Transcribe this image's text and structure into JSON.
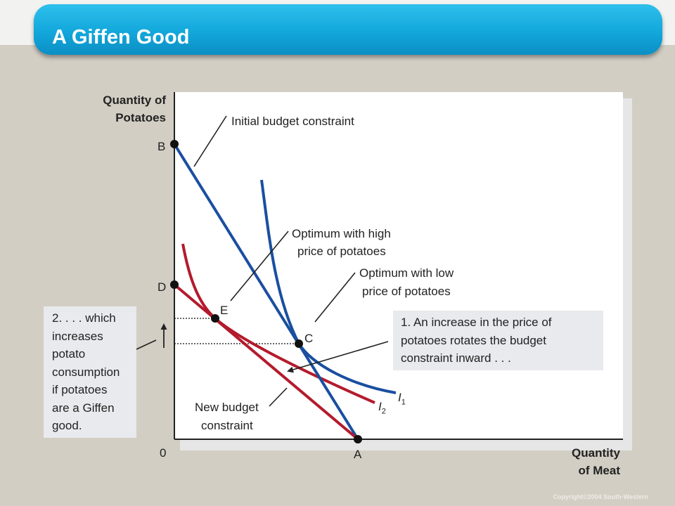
{
  "slide": {
    "title": "A Giffen Good",
    "copyright": "Copyright©2004  South-Western"
  },
  "diagram": {
    "axes": {
      "y_title_line1": "Quantity of",
      "y_title_line2": "Potatoes",
      "x_title_line1": "Quantity",
      "x_title_line2": "of Meat",
      "origin": "0"
    },
    "points": {
      "b": "B",
      "d": "D",
      "e": "E",
      "c": "C",
      "a": "A"
    },
    "curves": {
      "i1": "I",
      "i1_sub": "1",
      "i2": "I",
      "i2_sub": "2"
    },
    "labels": {
      "initial_budget": "Initial budget constraint",
      "optimum_high_line1": "Optimum with high",
      "optimum_high_line2": "price of potatoes",
      "optimum_low_line1": "Optimum with low",
      "optimum_low_line2": "price of potatoes",
      "new_budget_line1": "New budget",
      "new_budget_line2": "constraint"
    },
    "callouts": {
      "increase_price": [
        "1. An increase in the price of",
        "potatoes rotates the budget",
        "constraint inward . . ."
      ],
      "giffen": [
        "2. . . . which",
        "increases",
        "potato",
        "consumption",
        "if potatoes",
        "are a Giffen",
        "good."
      ]
    },
    "colors": {
      "initial_budget": "#1a4fa0",
      "new_budget": "#b31b2c",
      "indifference_i1": "#1a4fa0",
      "indifference_i2": "#b31b2c"
    }
  }
}
